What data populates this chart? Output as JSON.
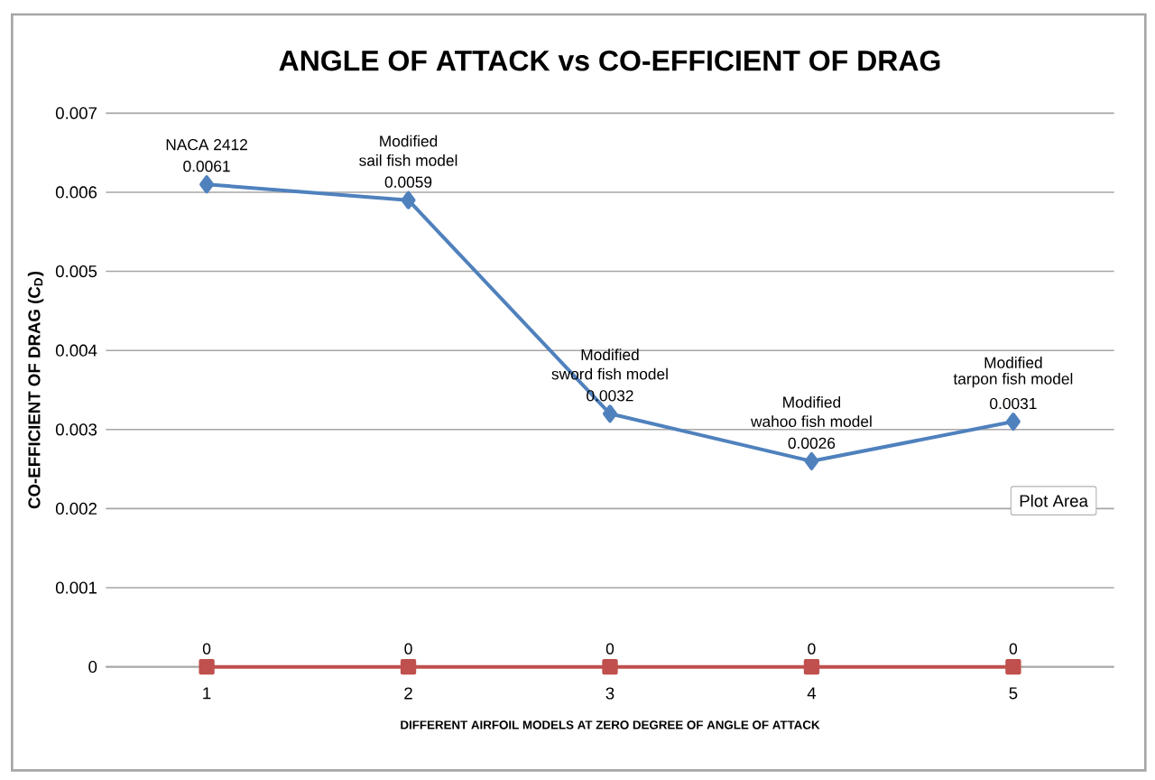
{
  "chart_data": {
    "type": "line",
    "title": "ANGLE OF ATTACK vs CO-EFFICIENT OF DRAG",
    "xlabel": "DIFFERENT  AIRFOIL MODELS AT ZERO DEGREE  OF ANGLE OF ATTACK",
    "ylabel": "CO-EFFICIENT  OF  DRAG  (C$_{D}$)",
    "categories": [
      "1",
      "2",
      "3",
      "4",
      "5"
    ],
    "series": [
      {
        "color": "#4f81bd",
        "marker": "diamond",
        "values": [
          0.0061,
          0.0059,
          0.0032,
          0.0026,
          0.0031
        ]
      },
      {
        "color": "#c0504d",
        "marker": "square",
        "values": [
          0,
          0,
          0,
          0,
          0
        ]
      }
    ],
    "ylim": [
      0,
      0.007
    ],
    "yticks": [
      0,
      0.001,
      0.002,
      0.003,
      0.004,
      0.005,
      0.006,
      0.007
    ],
    "grid": "y",
    "data_labels": true,
    "annotations": [
      {
        "text": "NACA 2412",
        "x": "1",
        "y": 0.0061
      },
      "Modified",
      {
        "text": "sail fish model",
        "x": "2",
        "y": 0.0059
      },
      "Modified",
      {
        "text": "sword fish model",
        "x": "3",
        "y": 0.0032
      },
      "Modified",
      {
        "text": "wahoo fish model",
        "x": "4",
        "y": 0.0026
      },
      "Modified",
      {
        "text": "tarpon fish model",
        "x": "5",
        "y": 0.0031
      },
      "Plot Area"
    ]
  }
}
